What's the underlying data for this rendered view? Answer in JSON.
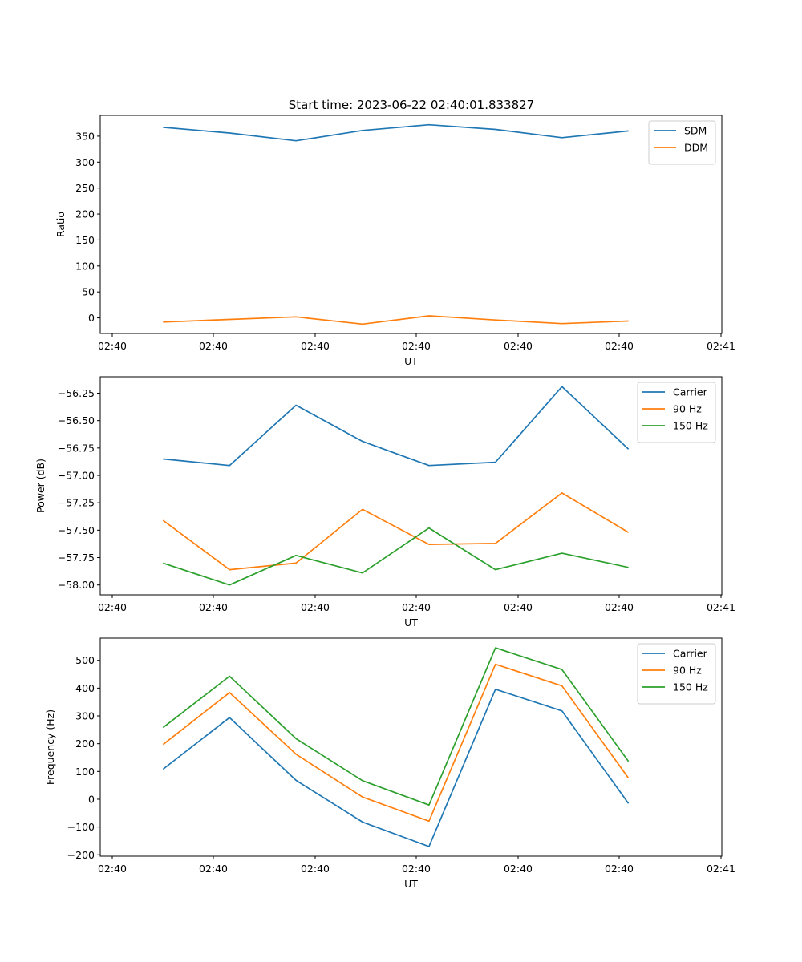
{
  "figure": {
    "title": "Start time: 2023-06-22 02:40:01.833827"
  },
  "chart_data": [
    {
      "type": "line",
      "title": "Start time: 2023-06-22 02:40:01.833827",
      "xlabel": "UT",
      "ylabel": "Ratio",
      "x_tick_labels": [
        "02:40",
        "02:40",
        "02:40",
        "02:40",
        "02:40",
        "02:40",
        "02:41"
      ],
      "y_ticks": [
        0,
        50,
        100,
        150,
        200,
        250,
        300,
        350
      ],
      "ylim": [
        -30,
        390
      ],
      "grid": false,
      "legend": "top-right",
      "series": [
        {
          "name": "SDM",
          "color": "#1f77b4",
          "values": [
            367,
            356,
            341,
            361,
            372,
            363,
            347,
            360
          ]
        },
        {
          "name": "DDM",
          "color": "#ff7f0e",
          "values": [
            -8,
            -3,
            2,
            -12,
            4,
            -4,
            -11,
            -6
          ]
        }
      ]
    },
    {
      "type": "line",
      "title": "",
      "xlabel": "UT",
      "ylabel": "Power (dB)",
      "x_tick_labels": [
        "02:40",
        "02:40",
        "02:40",
        "02:40",
        "02:40",
        "02:40",
        "02:41"
      ],
      "y_ticks": [
        -58.0,
        -57.75,
        -57.5,
        -57.25,
        -57.0,
        -56.75,
        -56.5,
        -56.25
      ],
      "y_tick_labels": [
        "−58.00",
        "−57.75",
        "−57.50",
        "−57.25",
        "−57.00",
        "−56.75",
        "−56.50",
        "−56.25"
      ],
      "ylim": [
        -58.09,
        -56.1
      ],
      "grid": false,
      "legend": "top-right",
      "series": [
        {
          "name": "Carrier",
          "color": "#1f77b4",
          "values": [
            -56.85,
            -56.91,
            -56.36,
            -56.69,
            -56.91,
            -56.88,
            -56.19,
            -56.76
          ]
        },
        {
          "name": "90 Hz",
          "color": "#ff7f0e",
          "values": [
            -57.41,
            -57.86,
            -57.8,
            -57.31,
            -57.63,
            -57.62,
            -57.16,
            -57.52
          ]
        },
        {
          "name": "150 Hz",
          "color": "#2ca02c",
          "values": [
            -57.8,
            -58.0,
            -57.73,
            -57.89,
            -57.48,
            -57.86,
            -57.71,
            -57.84
          ]
        }
      ]
    },
    {
      "type": "line",
      "title": "",
      "xlabel": "UT",
      "ylabel": "Frequency (Hz)",
      "x_tick_labels": [
        "02:40",
        "02:40",
        "02:40",
        "02:40",
        "02:40",
        "02:40",
        "02:41"
      ],
      "y_ticks": [
        -200,
        -100,
        0,
        100,
        200,
        300,
        400,
        500
      ],
      "y_tick_labels": [
        "−200",
        "−100",
        "0",
        "100",
        "200",
        "300",
        "400",
        "500"
      ],
      "ylim": [
        -205,
        580
      ],
      "grid": false,
      "legend": "top-right",
      "series": [
        {
          "name": "Carrier",
          "color": "#1f77b4",
          "values": [
            108,
            294,
            68,
            -82,
            -170,
            396,
            318,
            -15
          ]
        },
        {
          "name": "90 Hz",
          "color": "#ff7f0e",
          "values": [
            197,
            384,
            162,
            8,
            -79,
            486,
            408,
            76
          ]
        },
        {
          "name": "150 Hz",
          "color": "#2ca02c",
          "values": [
            258,
            443,
            218,
            67,
            -21,
            545,
            467,
            136
          ]
        }
      ]
    }
  ]
}
